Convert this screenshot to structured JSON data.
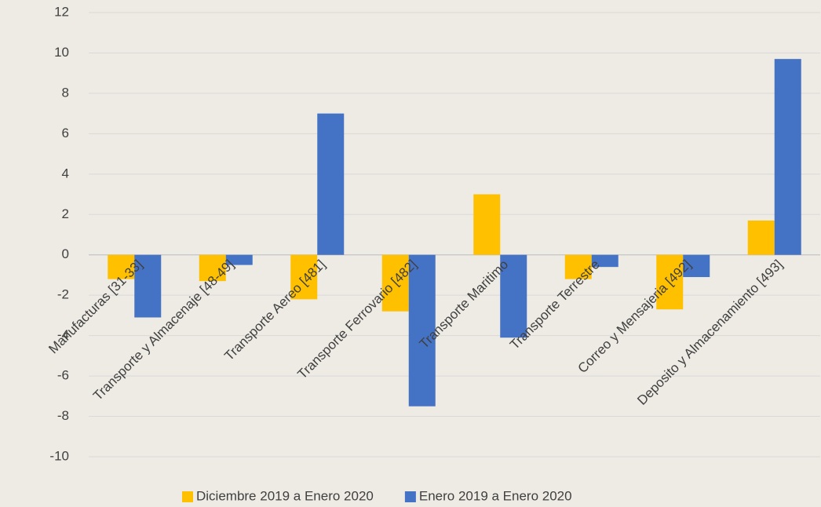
{
  "chart_data": {
    "type": "bar",
    "categories": [
      "Manufacturas [31-33]",
      "Transporte y Almacenaje [48-49]",
      "Transporte Aereo [481]",
      "Transporte Ferrovario [482]",
      "Transporte Maritimo",
      "Transporte Terrestre",
      "Correo y Mensajeria [492]",
      "Deposito y Almacenamiento [493]"
    ],
    "series": [
      {
        "name": "Diciembre 2019 a Enero 2020",
        "color": "#ffc000",
        "values": [
          -1.2,
          -1.3,
          -2.2,
          -2.8,
          3.0,
          -1.2,
          -2.7,
          1.7
        ]
      },
      {
        "name": "Enero 2019 a Enero 2020",
        "color": "#4472c4",
        "values": [
          -3.1,
          -0.5,
          7.0,
          -7.5,
          -4.1,
          -0.6,
          -1.1,
          9.7
        ]
      }
    ],
    "ylim": [
      -10,
      12
    ],
    "yticks": [
      -10,
      -8,
      -6,
      -4,
      -2,
      0,
      2,
      4,
      6,
      8,
      10,
      12
    ],
    "grid": true,
    "legend": "bottom"
  }
}
